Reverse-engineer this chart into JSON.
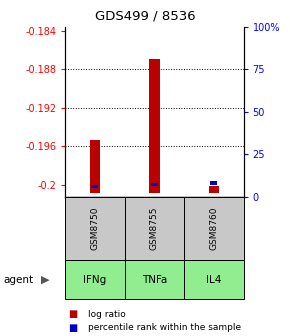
{
  "title": "GDS499 / 8536",
  "samples": [
    "GSM8750",
    "GSM8755",
    "GSM8760"
  ],
  "agents": [
    "IFNg",
    "TNFa",
    "IL4"
  ],
  "log_ratios": [
    -0.1953,
    -0.1869,
    -0.2001
  ],
  "pct_ranks": [
    6,
    7,
    8
  ],
  "ymin": -0.2012,
  "ymax": -0.1836,
  "yticks": [
    -0.2,
    -0.196,
    -0.192,
    -0.188,
    -0.184
  ],
  "ytick_labels": [
    "-0.2",
    "-0.196",
    "-0.192",
    "-0.188",
    "-0.184"
  ],
  "right_yticks_pct": [
    0,
    25,
    50,
    75,
    100
  ],
  "right_ytick_labels": [
    "0",
    "25",
    "50",
    "75",
    "100%"
  ],
  "bar_color": "#bb0000",
  "percentile_color": "#0000cc",
  "sample_bg_color": "#c8c8c8",
  "agent_bg_color": "#90ee90",
  "grid_lines": [
    -0.188,
    -0.192,
    -0.196
  ],
  "legend_ratio_label": "log ratio",
  "legend_percentile_label": "percentile rank within the sample",
  "bar_bottom": -0.2008,
  "bar_width": 0.18
}
